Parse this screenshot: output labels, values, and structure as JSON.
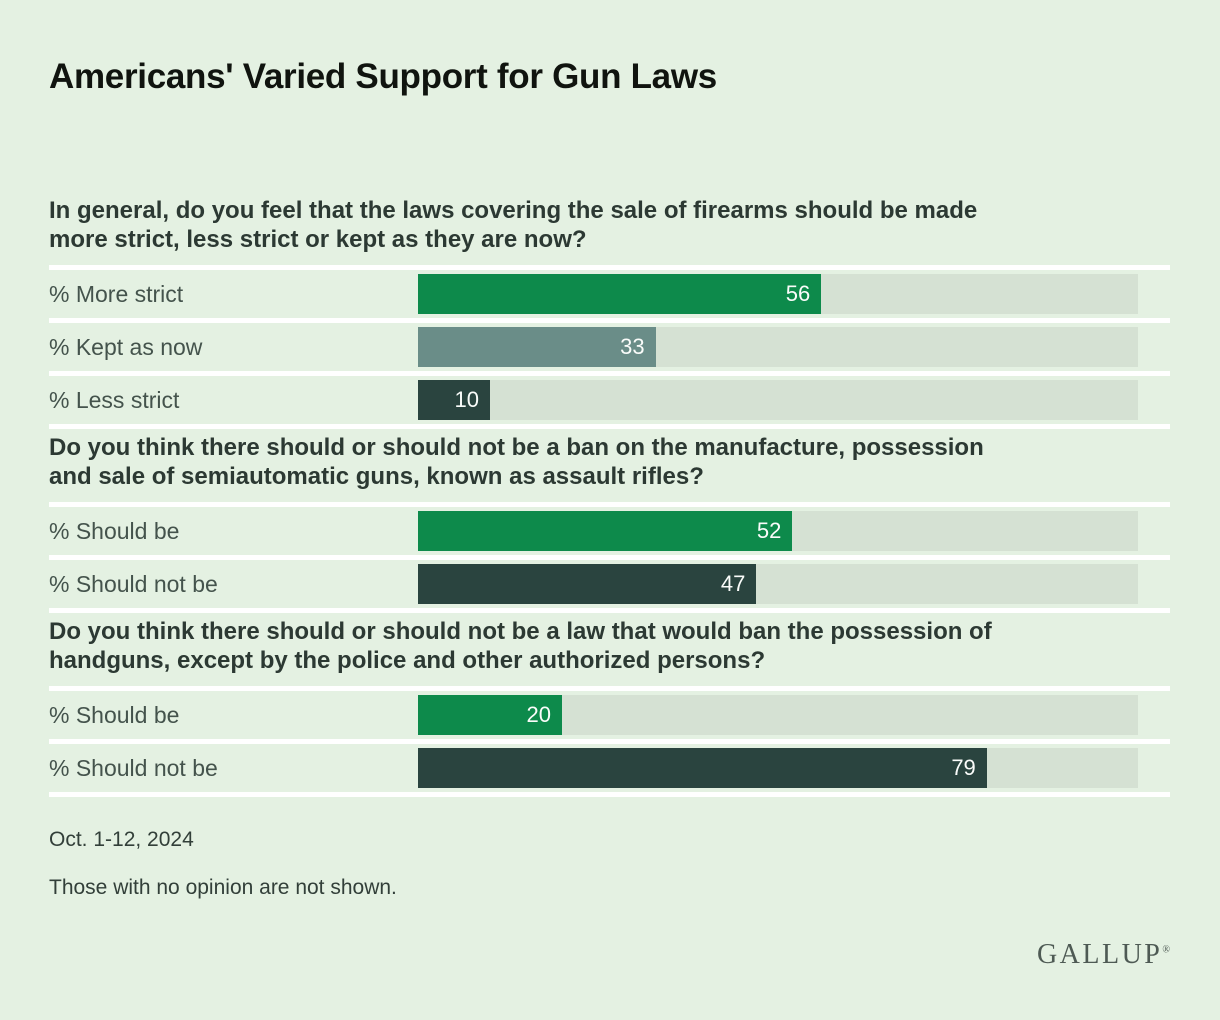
{
  "title": "Americans' Varied Support for Gun Laws",
  "palette": {
    "green": "#0d8a4b",
    "slate": "#6a8d88",
    "dark": "#2a443f",
    "track": "#d5e1d3",
    "background": "#e4f1e2",
    "separator": "#ffffff"
  },
  "chart_data": {
    "type": "bar",
    "orientation": "horizontal",
    "unit": "percent",
    "xlim": [
      0,
      100
    ],
    "grid": false,
    "legend": "none",
    "title": "Americans' Varied Support for Gun Laws",
    "questions": [
      {
        "text": "In general, do you feel that the laws covering the sale of firearms should be made more strict, less strict or kept as they are now?",
        "lines": [
          "In general, do you feel that the laws covering the sale of firearms should be made",
          "more strict, less strict or kept as they are now?"
        ],
        "rows": [
          {
            "label": "% More strict",
            "value": 56,
            "color": "green"
          },
          {
            "label": "% Kept as now",
            "value": 33,
            "color": "slate"
          },
          {
            "label": "% Less strict",
            "value": 10,
            "color": "dark"
          }
        ]
      },
      {
        "text": "Do you think there should or should not be a ban on the manufacture, possession and sale of semiautomatic guns, known as assault rifles?",
        "lines": [
          "Do you think there should or should not be a ban on the manufacture, possession",
          "and sale of semiautomatic guns, known as assault rifles?"
        ],
        "rows": [
          {
            "label": "% Should be",
            "value": 52,
            "color": "green"
          },
          {
            "label": "% Should not be",
            "value": 47,
            "color": "dark"
          }
        ]
      },
      {
        "text": "Do you think there should or should not be a law that would ban the possession of handguns, except by the police and other authorized persons?",
        "lines": [
          "Do you think there should or should not be a law that would ban the possession of",
          "handguns, except by the police and other authorized persons?"
        ],
        "rows": [
          {
            "label": "% Should be",
            "value": 20,
            "color": "green"
          },
          {
            "label": "% Should not be",
            "value": 79,
            "color": "dark"
          }
        ]
      }
    ]
  },
  "footer": {
    "date": "Oct. 1-12, 2024",
    "note": "Those with no opinion are not shown.",
    "logo": "GALLUP",
    "registered_mark": "®"
  }
}
